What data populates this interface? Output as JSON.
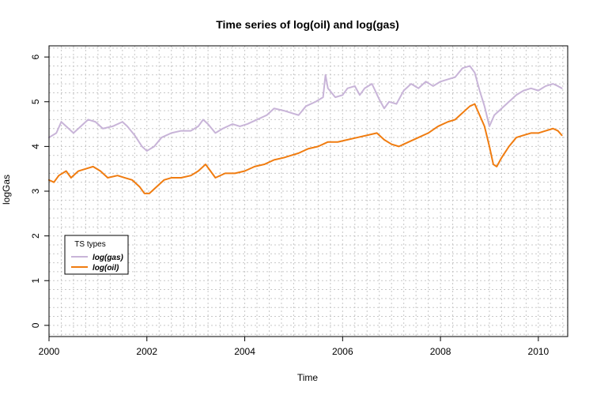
{
  "chart_data": {
    "type": "line",
    "title": "Time series of log(oil) and log(gas)",
    "xlabel": "Time",
    "ylabel": "logGas",
    "xlim": [
      2000,
      2010.6
    ],
    "ylim": [
      -0.25,
      6.25
    ],
    "x_ticks": [
      2000,
      2002,
      2004,
      2006,
      2008,
      2010
    ],
    "x_tick_labels": [
      "2000",
      "2002",
      "2004",
      "2006",
      "2008",
      "2010"
    ],
    "y_ticks": [
      0,
      1,
      2,
      3,
      4,
      5,
      6
    ],
    "y_tick_labels": [
      "0",
      "1",
      "2",
      "3",
      "4",
      "5",
      "6"
    ],
    "grid": true,
    "legend": {
      "title": "TS types",
      "position": "bottom-left",
      "entries": [
        "log(gas)",
        "log(oil)"
      ]
    },
    "series": [
      {
        "name": "log(gas)",
        "color": "#c8b4d8",
        "points": [
          [
            2000.0,
            4.2
          ],
          [
            2000.15,
            4.3
          ],
          [
            2000.25,
            4.55
          ],
          [
            2000.35,
            4.45
          ],
          [
            2000.5,
            4.3
          ],
          [
            2000.65,
            4.45
          ],
          [
            2000.8,
            4.6
          ],
          [
            2000.95,
            4.55
          ],
          [
            2001.1,
            4.4
          ],
          [
            2001.3,
            4.45
          ],
          [
            2001.5,
            4.55
          ],
          [
            2001.6,
            4.45
          ],
          [
            2001.75,
            4.25
          ],
          [
            2001.9,
            4.0
          ],
          [
            2002.0,
            3.9
          ],
          [
            2002.15,
            4.0
          ],
          [
            2002.3,
            4.2
          ],
          [
            2002.5,
            4.3
          ],
          [
            2002.7,
            4.35
          ],
          [
            2002.9,
            4.35
          ],
          [
            2003.05,
            4.45
          ],
          [
            2003.15,
            4.6
          ],
          [
            2003.25,
            4.5
          ],
          [
            2003.4,
            4.3
          ],
          [
            2003.55,
            4.4
          ],
          [
            2003.75,
            4.5
          ],
          [
            2003.9,
            4.45
          ],
          [
            2004.05,
            4.5
          ],
          [
            2004.25,
            4.6
          ],
          [
            2004.45,
            4.7
          ],
          [
            2004.6,
            4.85
          ],
          [
            2004.8,
            4.8
          ],
          [
            2004.95,
            4.75
          ],
          [
            2005.1,
            4.7
          ],
          [
            2005.25,
            4.9
          ],
          [
            2005.45,
            5.0
          ],
          [
            2005.6,
            5.1
          ],
          [
            2005.65,
            5.6
          ],
          [
            2005.7,
            5.3
          ],
          [
            2005.85,
            5.1
          ],
          [
            2006.0,
            5.15
          ],
          [
            2006.1,
            5.3
          ],
          [
            2006.25,
            5.35
          ],
          [
            2006.35,
            5.15
          ],
          [
            2006.45,
            5.3
          ],
          [
            2006.6,
            5.4
          ],
          [
            2006.75,
            5.05
          ],
          [
            2006.85,
            4.85
          ],
          [
            2006.95,
            5.0
          ],
          [
            2007.1,
            4.95
          ],
          [
            2007.25,
            5.25
          ],
          [
            2007.4,
            5.4
          ],
          [
            2007.55,
            5.3
          ],
          [
            2007.7,
            5.45
          ],
          [
            2007.85,
            5.35
          ],
          [
            2008.0,
            5.45
          ],
          [
            2008.15,
            5.5
          ],
          [
            2008.3,
            5.55
          ],
          [
            2008.45,
            5.75
          ],
          [
            2008.6,
            5.8
          ],
          [
            2008.7,
            5.65
          ],
          [
            2008.8,
            5.25
          ],
          [
            2008.9,
            4.9
          ],
          [
            2009.0,
            4.45
          ],
          [
            2009.1,
            4.7
          ],
          [
            2009.25,
            4.85
          ],
          [
            2009.4,
            5.0
          ],
          [
            2009.55,
            5.15
          ],
          [
            2009.7,
            5.25
          ],
          [
            2009.85,
            5.3
          ],
          [
            2010.0,
            5.25
          ],
          [
            2010.15,
            5.35
          ],
          [
            2010.3,
            5.4
          ],
          [
            2010.4,
            5.35
          ],
          [
            2010.48,
            5.3
          ]
        ]
      },
      {
        "name": "log(oil)",
        "color": "#f07c10",
        "points": [
          [
            2000.0,
            3.25
          ],
          [
            2000.1,
            3.2
          ],
          [
            2000.2,
            3.35
          ],
          [
            2000.35,
            3.45
          ],
          [
            2000.45,
            3.3
          ],
          [
            2000.6,
            3.45
          ],
          [
            2000.75,
            3.5
          ],
          [
            2000.9,
            3.55
          ],
          [
            2001.05,
            3.45
          ],
          [
            2001.2,
            3.3
          ],
          [
            2001.4,
            3.35
          ],
          [
            2001.55,
            3.3
          ],
          [
            2001.7,
            3.25
          ],
          [
            2001.85,
            3.1
          ],
          [
            2001.95,
            2.95
          ],
          [
            2002.05,
            2.95
          ],
          [
            2002.2,
            3.1
          ],
          [
            2002.35,
            3.25
          ],
          [
            2002.5,
            3.3
          ],
          [
            2002.7,
            3.3
          ],
          [
            2002.9,
            3.35
          ],
          [
            2003.05,
            3.45
          ],
          [
            2003.2,
            3.6
          ],
          [
            2003.3,
            3.45
          ],
          [
            2003.4,
            3.3
          ],
          [
            2003.6,
            3.4
          ],
          [
            2003.8,
            3.4
          ],
          [
            2004.0,
            3.45
          ],
          [
            2004.2,
            3.55
          ],
          [
            2004.4,
            3.6
          ],
          [
            2004.6,
            3.7
          ],
          [
            2004.8,
            3.75
          ],
          [
            2004.95,
            3.8
          ],
          [
            2005.1,
            3.85
          ],
          [
            2005.3,
            3.95
          ],
          [
            2005.5,
            4.0
          ],
          [
            2005.7,
            4.1
          ],
          [
            2005.9,
            4.1
          ],
          [
            2006.1,
            4.15
          ],
          [
            2006.3,
            4.2
          ],
          [
            2006.5,
            4.25
          ],
          [
            2006.7,
            4.3
          ],
          [
            2006.85,
            4.15
          ],
          [
            2007.0,
            4.05
          ],
          [
            2007.15,
            4.0
          ],
          [
            2007.35,
            4.1
          ],
          [
            2007.55,
            4.2
          ],
          [
            2007.75,
            4.3
          ],
          [
            2007.95,
            4.45
          ],
          [
            2008.15,
            4.55
          ],
          [
            2008.3,
            4.6
          ],
          [
            2008.45,
            4.75
          ],
          [
            2008.6,
            4.9
          ],
          [
            2008.7,
            4.95
          ],
          [
            2008.8,
            4.7
          ],
          [
            2008.9,
            4.45
          ],
          [
            2009.0,
            4.0
          ],
          [
            2009.08,
            3.6
          ],
          [
            2009.15,
            3.55
          ],
          [
            2009.25,
            3.75
          ],
          [
            2009.4,
            4.0
          ],
          [
            2009.55,
            4.2
          ],
          [
            2009.7,
            4.25
          ],
          [
            2009.85,
            4.3
          ],
          [
            2010.0,
            4.3
          ],
          [
            2010.15,
            4.35
          ],
          [
            2010.3,
            4.4
          ],
          [
            2010.4,
            4.35
          ],
          [
            2010.48,
            4.25
          ]
        ]
      }
    ]
  }
}
